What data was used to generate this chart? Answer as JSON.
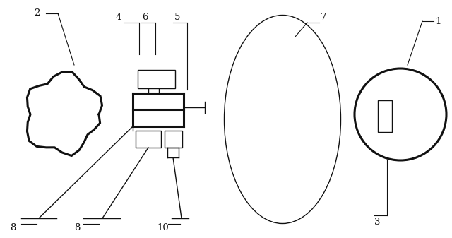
{
  "bg_color": "#ffffff",
  "line_color": "#111111",
  "thick_lw": 2.2,
  "thin_lw": 1.0,
  "leader_lw": 0.8,
  "fig_w": 6.4,
  "fig_h": 3.37,
  "dpi": 100
}
